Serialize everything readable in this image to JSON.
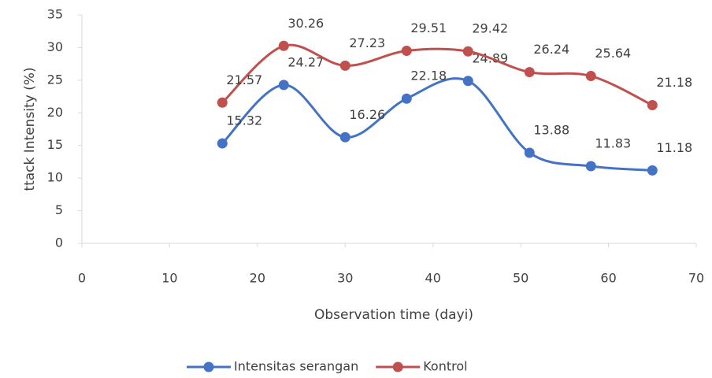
{
  "chart_data": {
    "type": "line",
    "smooth": true,
    "x_label": "Observation time (dayi)",
    "y_label": "ttack Intensity (%)",
    "x": [
      16,
      23,
      30,
      37,
      44,
      51,
      58,
      65
    ],
    "series": [
      {
        "name": "Intensitas serangan",
        "color": "#4472c4",
        "values": [
          15.32,
          24.27,
          16.26,
          22.18,
          24.89,
          13.88,
          11.83,
          11.18
        ]
      },
      {
        "name": "Kontrol",
        "color": "#c0504d",
        "values": [
          21.57,
          30.26,
          27.23,
          29.51,
          29.42,
          26.24,
          25.64,
          21.18
        ]
      }
    ],
    "xlim": [
      0,
      70
    ],
    "xticks": [
      0,
      10,
      20,
      30,
      40,
      50,
      60,
      70
    ],
    "ylim": [
      0,
      35
    ],
    "yticks": [
      0,
      5,
      10,
      15,
      20,
      25,
      30,
      35
    ],
    "legend": "bottom"
  }
}
